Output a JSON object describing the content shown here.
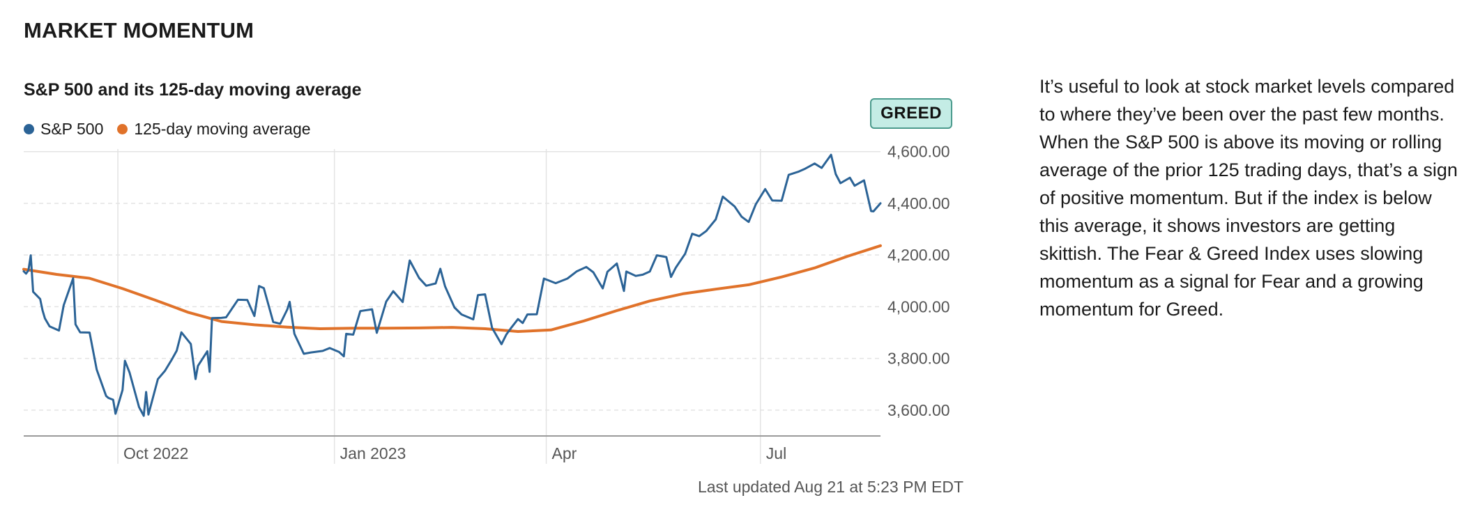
{
  "section_title": "MARKET MOMENTUM",
  "chart_title": "S&P 500 and its 125-day moving average",
  "badge": "GREED",
  "last_updated": "Last updated Aug 21 at 5:23 PM EDT",
  "description": "It’s useful to look at stock market levels compared to where they’ve been over the past few months. When the S&P 500 is above its moving or rolling average of the prior 125 trading days, that’s a sign of positive momentum. But if the index is below this average, it shows investors are getting skittish. The Fear & Greed Index uses slowing momentum as a signal for Fear and a growing momentum for Greed.",
  "colors": {
    "sp500": "#2b6396",
    "moving_average": "#e0722a",
    "badge_bg": "#c4ece5",
    "badge_border": "#4a9a8c",
    "grid": "#e3e3e3",
    "axis": "#9a9a9a"
  },
  "chart_data": {
    "type": "line",
    "legend_position": "top-left",
    "grid": true,
    "y_axis_side": "right",
    "ylim": [
      3500,
      4610
    ],
    "yticks": [
      3600,
      3800,
      4000,
      4200,
      4400,
      4600
    ],
    "ytick_labels": [
      "3,600.00",
      "3,800.00",
      "4,000.00",
      "4,200.00",
      "4,400.00",
      "4,600.00"
    ],
    "xlim": [
      "2022-08-22",
      "2023-08-21"
    ],
    "xticks": [
      "2022-10-01",
      "2023-01-01",
      "2023-04-01",
      "2023-07-01"
    ],
    "xtick_labels": [
      "Oct 2022",
      "Jan 2023",
      "Apr",
      "Jul"
    ],
    "series": [
      {
        "name": "S&P 500",
        "x": [
          "2022-08-22",
          "2022-08-23",
          "2022-08-24",
          "2022-08-25",
          "2022-08-26",
          "2022-08-29",
          "2022-08-30",
          "2022-08-31",
          "2022-09-02",
          "2022-09-06",
          "2022-09-08",
          "2022-09-12",
          "2022-09-13",
          "2022-09-15",
          "2022-09-19",
          "2022-09-22",
          "2022-09-26",
          "2022-09-27",
          "2022-09-29",
          "2022-09-30",
          "2022-10-03",
          "2022-10-04",
          "2022-10-06",
          "2022-10-10",
          "2022-10-12",
          "2022-10-13",
          "2022-10-14",
          "2022-10-18",
          "2022-10-21",
          "2022-10-24",
          "2022-10-26",
          "2022-10-28",
          "2022-11-01",
          "2022-11-03",
          "2022-11-04",
          "2022-11-08",
          "2022-11-09",
          "2022-11-10",
          "2022-11-14",
          "2022-11-16",
          "2022-11-21",
          "2022-11-25",
          "2022-11-28",
          "2022-11-30",
          "2022-12-02",
          "2022-12-06",
          "2022-12-09",
          "2022-12-12",
          "2022-12-13",
          "2022-12-15",
          "2022-12-19",
          "2022-12-22",
          "2022-12-27",
          "2022-12-30",
          "2023-01-03",
          "2023-01-05",
          "2023-01-06",
          "2023-01-09",
          "2023-01-12",
          "2023-01-17",
          "2023-01-19",
          "2023-01-23",
          "2023-01-26",
          "2023-01-30",
          "2023-02-02",
          "2023-02-06",
          "2023-02-09",
          "2023-02-13",
          "2023-02-15",
          "2023-02-17",
          "2023-02-21",
          "2023-02-24",
          "2023-03-01",
          "2023-03-03",
          "2023-03-06",
          "2023-03-09",
          "2023-03-13",
          "2023-03-15",
          "2023-03-17",
          "2023-03-20",
          "2023-03-22",
          "2023-03-24",
          "2023-03-28",
          "2023-03-31",
          "2023-04-05",
          "2023-04-10",
          "2023-04-14",
          "2023-04-18",
          "2023-04-21",
          "2023-04-25",
          "2023-04-27",
          "2023-05-01",
          "2023-05-04",
          "2023-05-05",
          "2023-05-09",
          "2023-05-12",
          "2023-05-15",
          "2023-05-18",
          "2023-05-22",
          "2023-05-24",
          "2023-05-26",
          "2023-05-30",
          "2023-06-02",
          "2023-06-05",
          "2023-06-08",
          "2023-06-12",
          "2023-06-15",
          "2023-06-20",
          "2023-06-23",
          "2023-06-26",
          "2023-06-29",
          "2023-07-03",
          "2023-07-06",
          "2023-07-10",
          "2023-07-13",
          "2023-07-17",
          "2023-07-20",
          "2023-07-24",
          "2023-07-27",
          "2023-07-31",
          "2023-08-02",
          "2023-08-04",
          "2023-08-08",
          "2023-08-10",
          "2023-08-14",
          "2023-08-17",
          "2023-08-18",
          "2023-08-21"
        ],
        "values": [
          4137,
          4128,
          4141,
          4199,
          4058,
          4030,
          3986,
          3955,
          3924,
          3908,
          4006,
          4110,
          3932,
          3901,
          3900,
          3757,
          3655,
          3647,
          3640,
          3586,
          3678,
          3791,
          3745,
          3612,
          3578,
          3670,
          3583,
          3720,
          3752,
          3797,
          3830,
          3901,
          3856,
          3720,
          3771,
          3828,
          3748,
          3956,
          3957,
          3959,
          4027,
          4026,
          3964,
          4080,
          4072,
          3941,
          3934,
          3990,
          4019,
          3895,
          3818,
          3823,
          3829,
          3840,
          3825,
          3808,
          3895,
          3892,
          3983,
          3990,
          3899,
          4020,
          4060,
          4018,
          4179,
          4111,
          4081,
          4090,
          4147,
          4079,
          3997,
          3970,
          3951,
          4045,
          4048,
          3918,
          3855,
          3892,
          3917,
          3952,
          3937,
          3970,
          3971,
          4109,
          4091,
          4109,
          4137,
          4154,
          4133,
          4071,
          4135,
          4167,
          4061,
          4136,
          4119,
          4124,
          4136,
          4199,
          4192,
          4115,
          4151,
          4205,
          4282,
          4273,
          4293,
          4338,
          4426,
          4388,
          4348,
          4328,
          4396,
          4455,
          4411,
          4410,
          4510,
          4522,
          4534,
          4554,
          4537,
          4588,
          4513,
          4478,
          4499,
          4468,
          4489,
          4370,
          4369,
          4400
        ]
      },
      {
        "name": "125-day moving average",
        "x": [
          "2022-08-22",
          "2022-09-05",
          "2022-09-19",
          "2022-10-03",
          "2022-10-17",
          "2022-10-31",
          "2022-11-14",
          "2022-11-28",
          "2022-12-12",
          "2022-12-26",
          "2023-01-09",
          "2023-01-23",
          "2023-02-06",
          "2023-02-20",
          "2023-03-06",
          "2023-03-20",
          "2023-04-03",
          "2023-04-17",
          "2023-05-01",
          "2023-05-15",
          "2023-05-29",
          "2023-06-12",
          "2023-06-26",
          "2023-07-10",
          "2023-07-24",
          "2023-08-07",
          "2023-08-21"
        ],
        "values": [
          4145,
          4125,
          4110,
          4070,
          4025,
          3978,
          3943,
          3930,
          3921,
          3915,
          3917,
          3917,
          3918,
          3920,
          3915,
          3904,
          3910,
          3945,
          3985,
          4022,
          4050,
          4068,
          4085,
          4115,
          4150,
          4195,
          4236
        ]
      }
    ]
  }
}
